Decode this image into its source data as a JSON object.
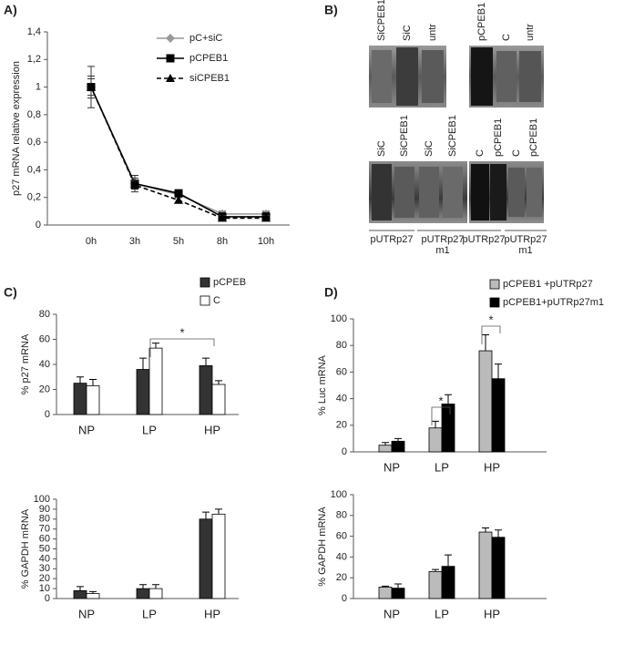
{
  "chart_data": [
    {
      "type": "line",
      "panel": "A)",
      "ylabel": "p27 mRNA relative expression",
      "categories": [
        "0h",
        "3h",
        "5h",
        "8h",
        "10h"
      ],
      "ylim": [
        0,
        1.4
      ],
      "yticks": [
        0,
        {
          "value": 0.2,
          "label": "0,2"
        },
        {
          "value": 0.4,
          "label": "0,4"
        },
        {
          "value": 0.6,
          "label": "0,6"
        },
        {
          "value": 0.8,
          "label": "0,8"
        },
        1,
        {
          "value": 1.2,
          "label": "1,2"
        },
        {
          "value": 1.4,
          "label": "1,4"
        }
      ],
      "series": [
        {
          "name": "pC+siC",
          "color": "#999999",
          "marker": "diamond",
          "linestyle": "solid",
          "values": [
            1,
            0.3,
            0.22,
            0.08,
            0.08
          ],
          "errors": [
            0.15,
            0.06,
            0.02,
            0.02,
            0.02
          ]
        },
        {
          "name": "pCPEB1",
          "color": "#000000",
          "marker": "square",
          "linestyle": "solid",
          "values": [
            1,
            0.3,
            0.23,
            0.06,
            0.06
          ],
          "errors": [
            0.08,
            0.04,
            0.02,
            0.03,
            0.03
          ]
        },
        {
          "name": "siCPEB1",
          "color": "#000000",
          "marker": "triangle",
          "linestyle": "dashed",
          "values": [
            1,
            0.29,
            0.18,
            0.05,
            0.05
          ],
          "errors": [
            0.06,
            0.03,
            0.02,
            0.02,
            0.02
          ]
        }
      ]
    },
    {
      "type": "bar",
      "panel": "C)",
      "ylabel": "% p27  mRNA",
      "categories": [
        "NP",
        "LP",
        "HP"
      ],
      "ylim": [
        0,
        80
      ],
      "yticks": [
        0,
        20,
        40,
        60,
        80
      ],
      "series": [
        {
          "name": "pCPEB",
          "color": "#333333",
          "values": [
            25,
            36,
            39
          ],
          "errors": [
            5,
            9,
            6
          ]
        },
        {
          "name": "C",
          "color": "#ffffff",
          "values": [
            23,
            53,
            24
          ],
          "errors": [
            5,
            4,
            3
          ]
        }
      ],
      "annotations": [
        "*"
      ]
    },
    {
      "type": "bar",
      "ylabel": "% GAPDH  mRNA",
      "categories": [
        "NP",
        "LP",
        "HP"
      ],
      "ylim": [
        0,
        100
      ],
      "yticks": [
        0,
        10,
        20,
        30,
        40,
        50,
        60,
        70,
        80,
        90,
        100
      ],
      "series": [
        {
          "color": "#333333",
          "values": [
            8,
            10,
            80
          ],
          "errors": [
            4,
            4,
            7
          ]
        },
        {
          "color": "#ffffff",
          "values": [
            5,
            10,
            85
          ],
          "errors": [
            2,
            4,
            5
          ]
        }
      ]
    },
    {
      "type": "bar",
      "panel": "D)",
      "ylabel": "% Luc  mRNA",
      "categories": [
        "NP",
        "LP",
        "HP"
      ],
      "ylim": [
        0,
        100
      ],
      "yticks": [
        0,
        20,
        40,
        60,
        80,
        100
      ],
      "series": [
        {
          "name": "pCPEB1 +pUTRp27",
          "color": "#bbbbbb",
          "values": [
            5,
            18,
            76
          ],
          "errors": [
            2,
            5,
            12
          ]
        },
        {
          "name": "pCPEB1+pUTRp27m1",
          "color": "#000000",
          "values": [
            8,
            36,
            55
          ],
          "errors": [
            2,
            7,
            11
          ]
        }
      ],
      "annotations": [
        "*",
        "*"
      ]
    },
    {
      "type": "bar",
      "ylabel": "% GAPDH  mRNA",
      "categories": [
        "NP",
        "LP",
        "HP"
      ],
      "ylim": [
        0,
        100
      ],
      "yticks": [
        0,
        20,
        40,
        60,
        80,
        100
      ],
      "series": [
        {
          "color": "#bbbbbb",
          "values": [
            11,
            26,
            64
          ],
          "errors": [
            1,
            2,
            4
          ]
        },
        {
          "color": "#000000",
          "values": [
            10,
            31,
            59
          ],
          "errors": [
            4,
            11,
            7
          ]
        }
      ]
    }
  ],
  "gel": {
    "panel": "B)",
    "top_left": [
      "SiCPEB1",
      "SiC",
      "untr"
    ],
    "top_right": [
      "pCPEB1",
      "C",
      "untr"
    ],
    "bottom_left": [
      "SiC",
      "SiCPEB1",
      "SiC",
      "SiCPEB1"
    ],
    "bottom_right": [
      "C",
      "pCPEB1",
      "C",
      "pCPEB1"
    ],
    "groups": [
      [
        "pUTRp27"
      ],
      [
        "pUTRp27",
        "m1"
      ],
      [
        "pUTRp27"
      ],
      [
        "pUTRp27",
        "m1"
      ]
    ]
  }
}
